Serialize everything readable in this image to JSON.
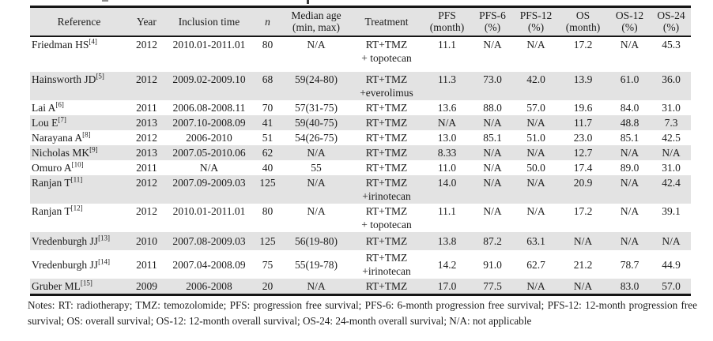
{
  "colors": {
    "stripe": "#e3e3e3",
    "rule": "#161616",
    "text": "#1c1c1c"
  },
  "table": {
    "columns": [
      {
        "key": "reference",
        "label": "Reference"
      },
      {
        "key": "year",
        "label": "Year"
      },
      {
        "key": "inclusion",
        "label": "Inclusion time"
      },
      {
        "key": "n",
        "label": "n"
      },
      {
        "key": "age",
        "label": "Median age\n(min, max)"
      },
      {
        "key": "treatment",
        "label": "Treatment"
      },
      {
        "key": "pfs",
        "label": "PFS\n(month)"
      },
      {
        "key": "pfs6",
        "label": "PFS-6\n(%)"
      },
      {
        "key": "pfs12",
        "label": "PFS-12\n(%)"
      },
      {
        "key": "os",
        "label": "OS\n(month)"
      },
      {
        "key": "os12",
        "label": "OS-12\n(%)"
      },
      {
        "key": "os24",
        "label": "OS-24\n(%)"
      }
    ],
    "rows": [
      {
        "reference": "Friedman HS",
        "sup": "[4]",
        "year": "2012",
        "inclusion": "2010.01-2011.01",
        "n": "80",
        "age": "N/A",
        "treatment": [
          "RT+TMZ",
          "+ topotecan"
        ],
        "pfs": "11.1",
        "pfs6": "N/A",
        "pfs12": "N/A",
        "os": "17.2",
        "os12": "N/A",
        "os24": "45.3"
      },
      {
        "reference": "Hainsworth JD",
        "sup": "[5]",
        "year": "2012",
        "inclusion": "2009.02-2009.10",
        "n": "68",
        "age": "59(24-80)",
        "treatment": [
          "RT+TMZ",
          "+everolimus"
        ],
        "pfs": "11.3",
        "pfs6": "73.0",
        "pfs12": "42.0",
        "os": "13.9",
        "os12": "61.0",
        "os24": "36.0"
      },
      {
        "reference": "Lai A",
        "sup": "[6]",
        "year": "2011",
        "inclusion": "2006.08-2008.11",
        "n": "70",
        "age": "57(31-75)",
        "treatment": [
          "RT+TMZ"
        ],
        "pfs": "13.6",
        "pfs6": "88.0",
        "pfs12": "57.0",
        "os": "19.6",
        "os12": "84.0",
        "os24": "31.0"
      },
      {
        "reference": "Lou E",
        "sup": "[7]",
        "year": "2013",
        "inclusion": "2007.10-2008.09",
        "n": "41",
        "age": "59(40-75)",
        "treatment": [
          "RT+TMZ"
        ],
        "pfs": "N/A",
        "pfs6": "N/A",
        "pfs12": "N/A",
        "os": "11.7",
        "os12": "48.8",
        "os24": "7.3"
      },
      {
        "reference": "Narayana A",
        "sup": "[8]",
        "year": "2012",
        "inclusion": "2006-2010",
        "n": "51",
        "age": "54(26-75)",
        "treatment": [
          "RT+TMZ"
        ],
        "pfs": "13.0",
        "pfs6": "85.1",
        "pfs12": "51.0",
        "os": "23.0",
        "os12": "85.1",
        "os24": "42.5"
      },
      {
        "reference": "Nicholas MK",
        "sup": "[9]",
        "year": "2013",
        "inclusion": "2007.05-2010.06",
        "n": "62",
        "age": "N/A",
        "treatment": [
          "RT+TMZ"
        ],
        "pfs": "8.33",
        "pfs6": "N/A",
        "pfs12": "N/A",
        "os": "12.7",
        "os12": "N/A",
        "os24": "N/A"
      },
      {
        "reference": "Omuro A",
        "sup": "[10]",
        "year": "2011",
        "inclusion": "N/A",
        "n": "40",
        "age": "55",
        "treatment": [
          "RT+TMZ"
        ],
        "pfs": "11.0",
        "pfs6": "N/A",
        "pfs12": "50.0",
        "os": "17.4",
        "os12": "89.0",
        "os24": "31.0"
      },
      {
        "reference": "Ranjan T",
        "sup": "[11]",
        "year": "2012",
        "inclusion": "2007.09-2009.03",
        "n": "125",
        "age": "N/A",
        "treatment": [
          "RT+TMZ",
          "+irinotecan"
        ],
        "pfs": "14.0",
        "pfs6": "N/A",
        "pfs12": "N/A",
        "os": "20.9",
        "os12": "N/A",
        "os24": "42.4"
      },
      {
        "reference": "Ranjan T",
        "sup": "[12]",
        "year": "2012",
        "inclusion": "2010.01-2011.01",
        "n": "80",
        "age": "N/A",
        "treatment": [
          "RT+TMZ",
          "+ topotecan"
        ],
        "pfs": "11.1",
        "pfs6": "N/A",
        "pfs12": "N/A",
        "os": "17.2",
        "os12": "N/A",
        "os24": "39.1"
      },
      {
        "reference": "Vredenburgh JJ",
        "sup": "[13]",
        "year": "2010",
        "inclusion": "2007.08-2009.03",
        "n": "125",
        "age": "56(19-80)",
        "treatment": [
          "RT+TMZ"
        ],
        "pfs": "13.8",
        "pfs6": "87.2",
        "pfs12": "63.1",
        "os": "N/A",
        "os12": "N/A",
        "os24": "N/A"
      },
      {
        "reference": "Vredenburgh JJ",
        "sup": "[14]",
        "year": "2011",
        "inclusion": "2007.04-2008.09",
        "n": "75",
        "age": "55(19-78)",
        "treatment": [
          "RT+TMZ",
          "+irinotecan"
        ],
        "pfs": "14.2",
        "pfs6": "91.0",
        "pfs12": "62.7",
        "os": "21.2",
        "os12": "78.7",
        "os24": "44.9"
      },
      {
        "reference": "Gruber ML",
        "sup": "[15]",
        "year": "2009",
        "inclusion": "2006-2008",
        "n": "20",
        "age": "N/A",
        "treatment": [
          "RT+TMZ"
        ],
        "pfs": "17.0",
        "pfs6": "77.5",
        "pfs12": "N/A",
        "os": "N/A",
        "os12": "83.0",
        "os24": "57.0"
      }
    ]
  },
  "notes": "Notes: RT: radiotherapy; TMZ: temozolomide; PFS: progression free survival; PFS-6: 6-month progression free survival; PFS-12: 12-month progression free survival; OS: overall survival; OS-12: 12-month overall survival; OS-24: 24-month overall survival; N/A: not applicable"
}
